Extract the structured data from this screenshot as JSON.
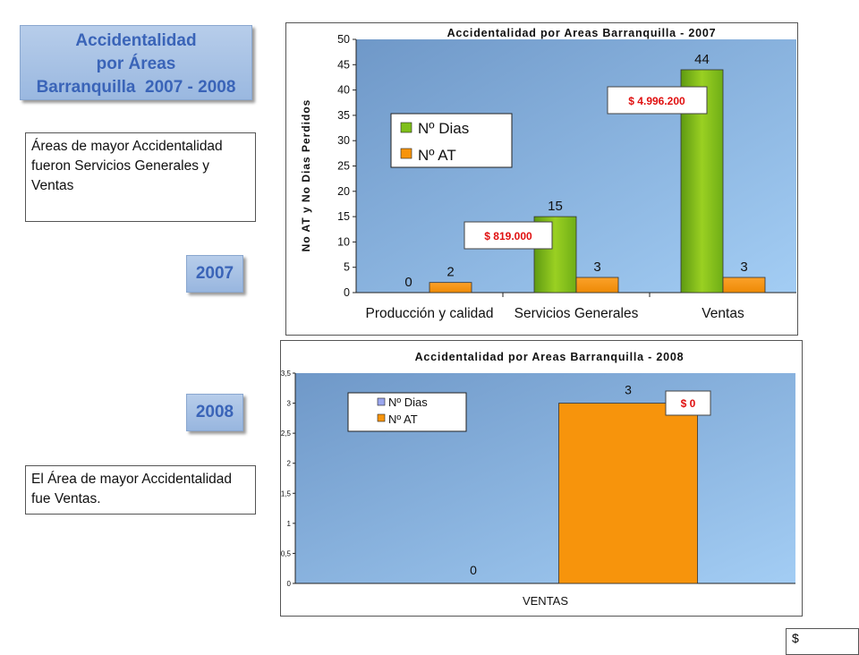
{
  "title": {
    "line1": "Accidentalidad",
    "line2": "por Áreas",
    "line3": "Barranquilla  2007 - 2008"
  },
  "note_2007": "Áreas de mayor Accidentalidad fueron Servicios Generales  y Ventas",
  "note_2008": "El Área de mayor Accidentalidad fue Ventas.",
  "year_2007": "2007",
  "year_2008": "2008",
  "corner_text": "$",
  "colors": {
    "green": "#7fbf1a",
    "orange": "#f7940c",
    "lavender": "#9aa6ee",
    "callout": "#e01010"
  },
  "chart_data": [
    {
      "type": "bar",
      "title": "Accidentalidad por Areas Barranquilla - 2007",
      "ylabel": "No AT y No Dias  Perdidos",
      "xlabel": "",
      "categories": [
        "Producción y calidad",
        "Servicios Generales",
        "Ventas"
      ],
      "series": [
        {
          "name": "Nº Dias",
          "values": [
            0,
            15,
            44
          ],
          "color": "#7fbf1a"
        },
        {
          "name": "Nº AT",
          "values": [
            2,
            3,
            3
          ],
          "color": "#f7940c"
        }
      ],
      "ylim": [
        0,
        50
      ],
      "yticks": [
        0,
        5,
        10,
        15,
        20,
        25,
        30,
        35,
        40,
        45,
        50
      ],
      "legend": "left",
      "callouts": [
        "$ 819.000",
        "$ 4.996.200"
      ]
    },
    {
      "type": "bar",
      "title": "Accidentalidad por Areas Barranquilla - 2008",
      "categories": [
        "VENTAS"
      ],
      "series": [
        {
          "name": "Nº Dias",
          "values": [
            0
          ],
          "color": "#9aa6ee"
        },
        {
          "name": "Nº AT",
          "values": [
            3
          ],
          "color": "#f7940c"
        }
      ],
      "ylim": [
        0,
        3.5
      ],
      "yticks": [
        "0",
        "0,5",
        "1",
        "1,5",
        "2",
        "2,5",
        "3",
        "3,5"
      ],
      "legend": "top-left",
      "callouts": [
        "$ 0"
      ]
    }
  ]
}
